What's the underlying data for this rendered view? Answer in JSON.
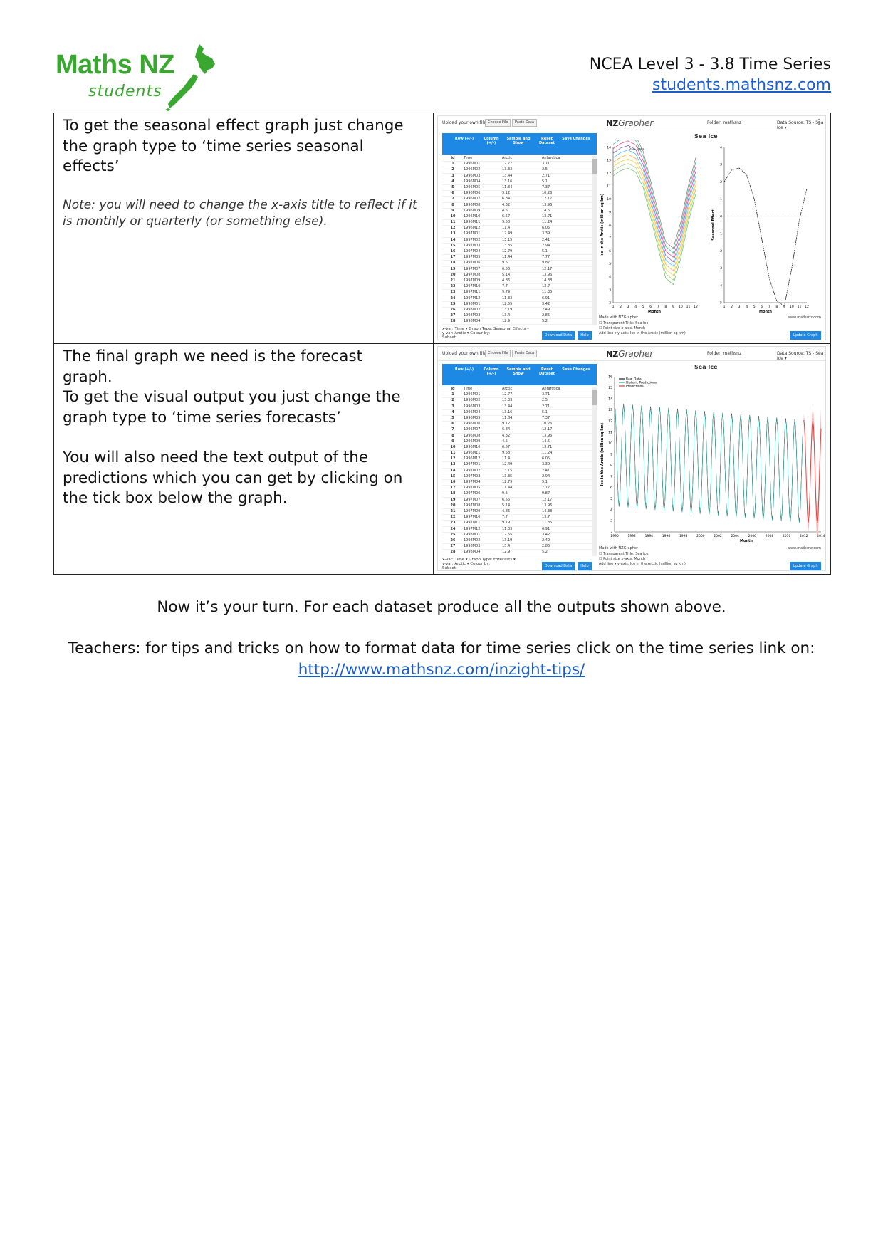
{
  "header": {
    "logo_main": "Maths NZ",
    "logo_sub": "students",
    "course": "NCEA Level 3 - 3.8 Time Series",
    "site": "students.mathsnz.com"
  },
  "rows": [
    {
      "text_lines": [
        "To get the seasonal effect graph just change",
        "the graph type to ‘time series seasonal",
        "effects’"
      ],
      "note": "Note: you will need to change the x-axis title to reflect if it is monthly or quarterly (or something else)."
    },
    {
      "text_lines": [
        "The final graph we need is the forecast",
        "graph.",
        "To get the visual output you just change the",
        "graph type to ‘time series forecasts’"
      ],
      "text_lines_2": [
        "You will also need the text output of the",
        "predictions which you can get by clicking on",
        "the tick box below the graph."
      ]
    }
  ],
  "app": {
    "upload_label": "Upload your own file:",
    "choose_file": "Choose File",
    "paste_data": "Paste Data",
    "brand_prefix": "NZ",
    "brand_suffix": "Grapher",
    "folder_label": "Folder:",
    "folder_value": "mathsnz",
    "datasource_label": "Data Source:",
    "datasource_value": "TS - Sea Ice",
    "head_row": "Row (+/-)",
    "head_col": "Column (+/-)",
    "head_sample": "Sample and Show",
    "head_reset": "Reset Dataset",
    "head_save": "Save Changes",
    "columns": [
      "id",
      "Time",
      "Arctic",
      "Antarctica"
    ],
    "table_rows": [
      [
        "1",
        "1996M01",
        "12.77",
        "3.71"
      ],
      [
        "2",
        "1996M02",
        "13.33",
        "2.5"
      ],
      [
        "3",
        "1996M03",
        "13.44",
        "2.71"
      ],
      [
        "4",
        "1996M04",
        "13.16",
        "5.1"
      ],
      [
        "5",
        "1996M05",
        "11.84",
        "7.37"
      ],
      [
        "6",
        "1996M06",
        "9.12",
        "10.26"
      ],
      [
        "7",
        "1996M07",
        "6.84",
        "12.17"
      ],
      [
        "8",
        "1996M08",
        "4.32",
        "13.96"
      ],
      [
        "9",
        "1996M09",
        "4.5",
        "14.5"
      ],
      [
        "10",
        "1996M10",
        "6.57",
        "13.71"
      ],
      [
        "11",
        "1996M11",
        "9.58",
        "11.24"
      ],
      [
        "12",
        "1996M12",
        "11.4",
        "6.05"
      ],
      [
        "13",
        "1997M01",
        "12.49",
        "3.39"
      ],
      [
        "14",
        "1997M02",
        "13.15",
        "2.41"
      ],
      [
        "15",
        "1997M03",
        "13.35",
        "2.94"
      ],
      [
        "16",
        "1997M04",
        "12.79",
        "5.1"
      ],
      [
        "17",
        "1997M05",
        "11.44",
        "7.77"
      ],
      [
        "18",
        "1997M06",
        "9.5",
        "9.87"
      ],
      [
        "19",
        "1997M07",
        "6.56",
        "12.17"
      ],
      [
        "20",
        "1997M08",
        "5.14",
        "13.96"
      ],
      [
        "21",
        "1997M09",
        "4.86",
        "14.38"
      ],
      [
        "22",
        "1997M10",
        "7.7",
        "13.7"
      ],
      [
        "23",
        "1997M11",
        "9.79",
        "11.35"
      ],
      [
        "24",
        "1997M12",
        "11.33",
        "6.91"
      ],
      [
        "25",
        "1998M01",
        "12.55",
        "3.42"
      ],
      [
        "26",
        "1998M02",
        "13.19",
        "2.49"
      ],
      [
        "27",
        "1998M03",
        "13.4",
        "2.85"
      ],
      [
        "28",
        "1998M04",
        "12.9",
        "5.2"
      ]
    ],
    "xvar_label": "x-var:",
    "xvar_value": "Time",
    "yvar_label": "y-var:",
    "yvar_value": "Arctic",
    "subset_label": "Subset:",
    "graph_type_label": "Graph Type:",
    "colour_label": "Colour by:",
    "graph_type_1": "Seasonal Effects",
    "graph_type_2": "Forecasts",
    "download": "Download Data",
    "help": "Help",
    "update": "Update Graph",
    "made_with": "Made with NZGrapher",
    "site": "www.mathsnz.com",
    "chart_title": "Sea Ice",
    "title_label": "Title:",
    "title_value": "Sea Ice",
    "xaxis_label": "x-axis:",
    "xaxis_value": "Month",
    "yaxis_label": "y-axis:",
    "yaxis_value": "Ice in the Arctic (million sq km)",
    "size_label": "Size:",
    "size_value": "Large",
    "transparent_label": "Transparent",
    "point_size_label": "Point size",
    "add_line_label": "Add line",
    "predictions_label": "Predictions",
    "show_label": "Show text",
    "raw_label": "Raw Data",
    "hist_label": "Historic Predictions",
    "pred_label": "Predictions",
    "ylabel_seasonal": "Seasonal Effect"
  },
  "footer": {
    "line1": "Now it’s your turn. For each dataset produce all the outputs shown above.",
    "line2": "Teachers: for tips and tricks on how to format data for time series click on the time series link on:",
    "link": "http://www.mathsnz.com/inzight-tips/"
  },
  "colors": {
    "brand_green": "#3aa830",
    "link_blue": "#1a5cc8",
    "app_blue": "#1e88e5",
    "pred_red": "#e53935",
    "hist_teal": "#26a69a"
  },
  "chart_data": [
    {
      "type": "line",
      "title": "Sea Ice",
      "xlabel": "Month",
      "ylabel": "Ice in the Arctic (million sq km)",
      "x": [
        1,
        2,
        3,
        4,
        5,
        6,
        7,
        8,
        9,
        10,
        11,
        12
      ],
      "ylim": [
        2,
        14
      ],
      "series": [
        {
          "name": "Raw Data",
          "values": [
            13.2,
            13.6,
            13.8,
            13.5,
            12.3,
            10.0,
            7.6,
            5.3,
            4.8,
            6.8,
            9.6,
            11.8
          ]
        }
      ]
    },
    {
      "type": "line",
      "xlabel": "Month",
      "ylabel": "Seasonal Effect",
      "x": [
        1,
        2,
        3,
        4,
        5,
        6,
        7,
        8,
        9,
        10,
        11,
        12
      ],
      "ylim": [
        -5,
        4
      ],
      "series": [
        {
          "name": "Seasonal Effect",
          "values": [
            2.0,
            2.7,
            2.8,
            2.4,
            1.0,
            -1.3,
            -3.6,
            -4.9,
            -5.2,
            -3.0,
            -0.2,
            1.6
          ]
        }
      ]
    },
    {
      "type": "line",
      "title": "Sea Ice",
      "xlabel": "Month",
      "ylabel": "Ice in the Arctic (million sq km)",
      "x_ticks": [
        "1990",
        "1992",
        "1994",
        "1996",
        "1998",
        "2000",
        "2002",
        "2004",
        "2006",
        "2008",
        "2010",
        "2012",
        "2014"
      ],
      "ylim": [
        2,
        16
      ],
      "series": [
        {
          "name": "Raw Data"
        },
        {
          "name": "Historic Predictions"
        },
        {
          "name": "Predictions"
        }
      ]
    }
  ]
}
